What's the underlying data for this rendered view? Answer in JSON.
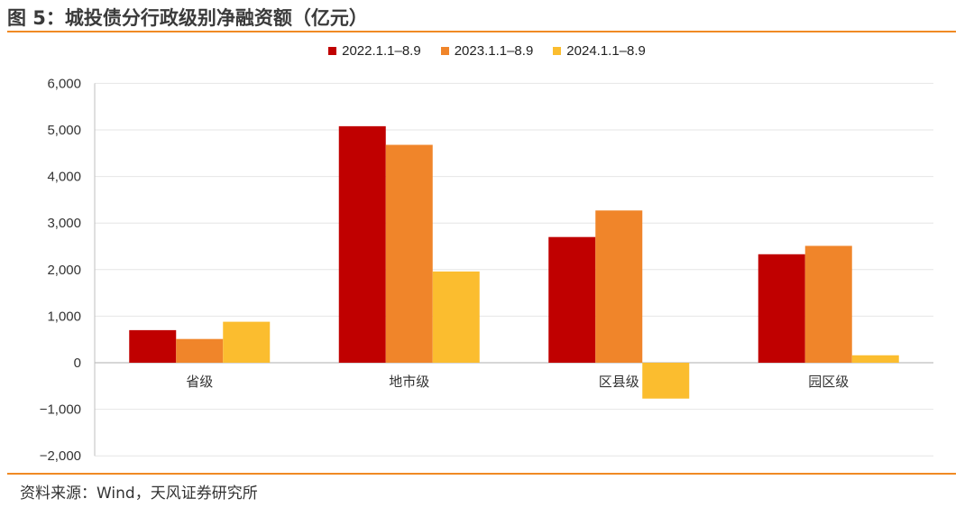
{
  "header": {
    "title": "图 5：城投债分行政级别净融资额（亿元）"
  },
  "footer": {
    "source": "资料来源：Wind，天风证券研究所"
  },
  "colors": {
    "accent_rule": "#f08a24",
    "series": [
      "#c00000",
      "#f0852a",
      "#fbbd2f"
    ],
    "grid": "#e6e6e6"
  },
  "chart_data": {
    "type": "bar",
    "title": "",
    "xlabel": "",
    "ylabel": "",
    "categories": [
      "省级",
      "地市级",
      "区县级",
      "园区级"
    ],
    "series": [
      {
        "name": "2022.1.1–8.9",
        "values": [
          700,
          5080,
          2700,
          2330
        ]
      },
      {
        "name": "2023.1.1–8.9",
        "values": [
          510,
          4680,
          3270,
          2510
        ]
      },
      {
        "name": "2024.1.1–8.9",
        "values": [
          880,
          1960,
          -770,
          160
        ]
      }
    ],
    "ylim": [
      -2000,
      6000
    ],
    "yticks": [
      "6,000",
      "5,000",
      "4,000",
      "3,000",
      "2,000",
      "1,000",
      "0",
      "−1,000",
      "−2,000"
    ],
    "ytick_values": [
      6000,
      5000,
      4000,
      3000,
      2000,
      1000,
      0,
      -1000,
      -2000
    ],
    "grid": true,
    "legend_position": "top-center"
  }
}
